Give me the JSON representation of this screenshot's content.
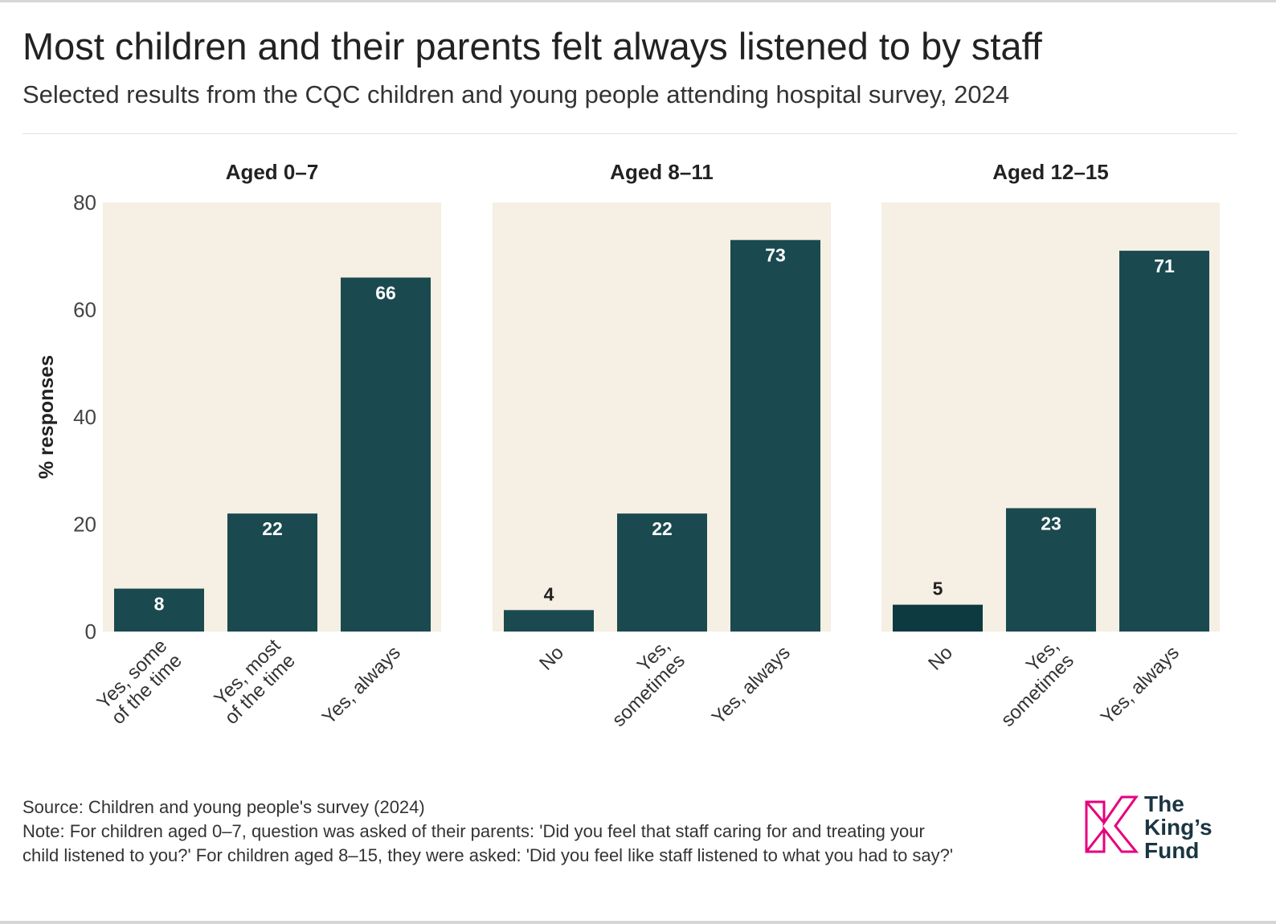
{
  "header": {
    "title": "Most children and their parents felt always listened to by staff",
    "subtitle": "Selected results from the CQC children and young people attending hospital survey, 2024"
  },
  "chart_data": {
    "type": "bar",
    "ylabel": "% responses",
    "ylim": [
      0,
      80
    ],
    "yticks": [
      0,
      20,
      40,
      60,
      80
    ],
    "grid": false,
    "colors": {
      "bar": "#1a4a4f",
      "bar_dark": "#0d3a40",
      "panel_bg": "#f5efe4"
    },
    "panels": [
      {
        "title": "Aged 0–7",
        "categories": [
          "Yes, some\nof the time",
          "Yes, most\nof the time",
          "Yes, always"
        ],
        "values": [
          8,
          22,
          66
        ]
      },
      {
        "title": "Aged 8–11",
        "categories": [
          "No",
          "Yes,\nsometimes",
          "Yes, always"
        ],
        "values": [
          4,
          22,
          73
        ]
      },
      {
        "title": "Aged 12–15",
        "categories": [
          "No",
          "Yes,\nsometimes",
          "Yes, always"
        ],
        "values": [
          5,
          23,
          71
        ]
      }
    ]
  },
  "footer": {
    "source": "Source: Children and young people's survey (2024)",
    "note_line1": "Note: For children aged 0–7, question was asked of their parents: 'Did you feel that staff caring for and treating your",
    "note_line2": "child listened to you?' For children aged 8–15, they were asked: 'Did you feel like staff listened to what you had to say?'"
  },
  "logo": {
    "line1": "The",
    "line2": "King’s",
    "line3": "Fund",
    "color": "#e6007e"
  }
}
